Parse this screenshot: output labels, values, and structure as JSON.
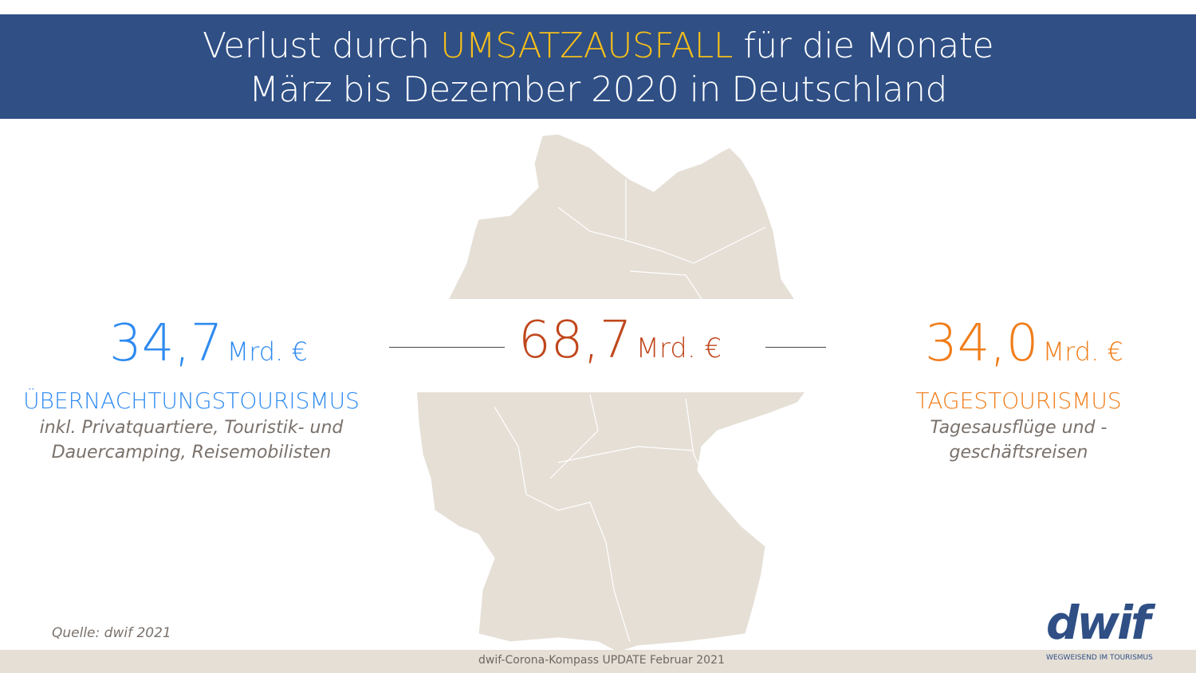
{
  "header": {
    "title_pre": "Verlust durch ",
    "title_highlight": "UMSATZAUSFALL",
    "title_post": " für die Monate",
    "title_line2": "März bis Dezember 2020 in Deutschland"
  },
  "left": {
    "value": "34,7",
    "unit": "Mrd. €",
    "label": "ÜBERNACHTUNGSTOURISMUS",
    "desc1": "inkl. Privatquartiere, Touristik- und",
    "desc2": "Dauercamping, Reisemobilisten"
  },
  "center": {
    "value": "68,7",
    "unit": "Mrd. €"
  },
  "right": {
    "value": "34,0",
    "unit": "Mrd. €",
    "label": "TAGESTOURISMUS",
    "desc": "Tagesausflüge und -geschäftsreisen"
  },
  "source": "Quelle: dwif 2021",
  "footer": "dwif-Corona-Kompass UPDATE Februar 2021",
  "logo": {
    "text": "dwif",
    "tagline": "WEGWEISEND IM TOURISMUS"
  },
  "colors": {
    "header": "#2f4f85",
    "highlight": "#f5be1a",
    "blue": "#2e8af0",
    "red": "#c0471c",
    "orange": "#f07d1a",
    "map": "#e5dfd6"
  }
}
